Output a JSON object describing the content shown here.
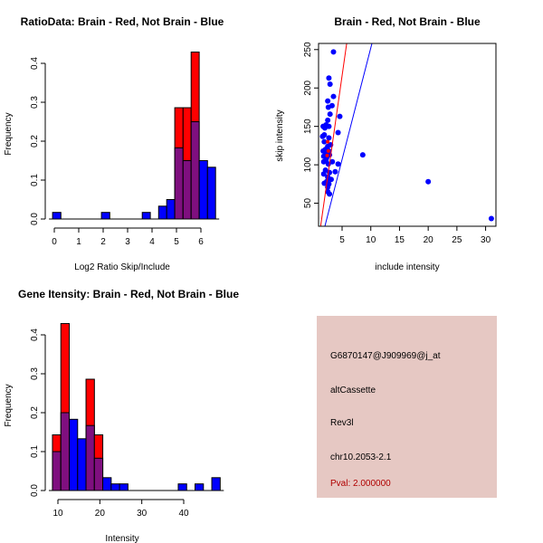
{
  "colors": {
    "red": "#ff0000",
    "blue": "#0000ff",
    "overlap": "#7f0f7f",
    "info_bg": "#e6c8c3",
    "pval": "#b00000"
  },
  "chart_data": [
    {
      "type": "bar",
      "title": "RatioData: Brain - Red, Not Brain - Blue",
      "xlabel": "Log2 Ratio Skip/Include",
      "ylabel": "Frequency",
      "xticks": [
        "0",
        "1",
        "2",
        "3",
        "4",
        "5",
        "6"
      ],
      "yticks": [
        "0.0",
        "0.1",
        "0.2",
        "0.3",
        "0.4"
      ],
      "xlim": [
        0,
        6.7
      ],
      "ylim": [
        0,
        0.43
      ],
      "bins": [
        {
          "from": -0.07,
          "to": 0.27,
          "red": 0,
          "blue": 0.017
        },
        {
          "from": 1.93,
          "to": 2.27,
          "red": 0,
          "blue": 0.017
        },
        {
          "from": 3.6,
          "to": 3.93,
          "red": 0,
          "blue": 0.017
        },
        {
          "from": 4.27,
          "to": 4.6,
          "red": 0,
          "blue": 0.033
        },
        {
          "from": 4.6,
          "to": 4.93,
          "red": 0,
          "blue": 0.05
        },
        {
          "from": 4.93,
          "to": 5.27,
          "red": 0.286,
          "blue": 0.183
        },
        {
          "from": 5.27,
          "to": 5.6,
          "red": 0.286,
          "blue": 0.15
        },
        {
          "from": 5.6,
          "to": 5.93,
          "red": 0.429,
          "blue": 0.25
        },
        {
          "from": 5.93,
          "to": 6.27,
          "red": 0,
          "blue": 0.15
        },
        {
          "from": 6.27,
          "to": 6.6,
          "red": 0,
          "blue": 0.133
        }
      ]
    },
    {
      "type": "scatter",
      "title": "Brain - Red, Not Brain - Blue",
      "xlabel": "include intensity",
      "ylabel": "skip intensity",
      "xticks": [
        5,
        10,
        15,
        20,
        25,
        30
      ],
      "yticks": [
        50,
        100,
        150,
        200,
        250
      ],
      "xlim": [
        0.9,
        31.8
      ],
      "ylim": [
        20,
        258
      ],
      "lines": [
        {
          "color": "red",
          "from": [
            1.26,
            20
          ],
          "to": [
            5.8,
            258
          ]
        },
        {
          "color": "blue",
          "from": [
            2.0,
            20
          ],
          "to": [
            10.2,
            258
          ]
        }
      ],
      "red_points": [
        [
          2.5,
          130
        ],
        [
          2.6,
          118
        ],
        [
          2.4,
          112
        ]
      ],
      "blue_points": [
        [
          3.5,
          247
        ],
        [
          2.7,
          213
        ],
        [
          2.9,
          205
        ],
        [
          3.5,
          189
        ],
        [
          2.5,
          183
        ],
        [
          3.25,
          177
        ],
        [
          2.6,
          175
        ],
        [
          2.9,
          166
        ],
        [
          4.6,
          163
        ],
        [
          2.5,
          158
        ],
        [
          2.2,
          152
        ],
        [
          2.7,
          150
        ],
        [
          2.0,
          148
        ],
        [
          1.7,
          150
        ],
        [
          1.6,
          137
        ],
        [
          4.3,
          142
        ],
        [
          1.9,
          139
        ],
        [
          2.7,
          135
        ],
        [
          1.9,
          130
        ],
        [
          3.0,
          126
        ],
        [
          2.5,
          124
        ],
        [
          2.1,
          120
        ],
        [
          1.7,
          118
        ],
        [
          2.7,
          118
        ],
        [
          2.2,
          115
        ],
        [
          2.8,
          113
        ],
        [
          1.8,
          111
        ],
        [
          2.3,
          109
        ],
        [
          8.6,
          113
        ],
        [
          3.3,
          104
        ],
        [
          4.3,
          101
        ],
        [
          2.2,
          106
        ],
        [
          1.8,
          104
        ],
        [
          2.6,
          101
        ],
        [
          2.1,
          93
        ],
        [
          3.8,
          91
        ],
        [
          2.8,
          90
        ],
        [
          1.8,
          88
        ],
        [
          2.5,
          84
        ],
        [
          3.1,
          81
        ],
        [
          2.3,
          78
        ],
        [
          1.9,
          76
        ],
        [
          2.7,
          75
        ],
        [
          2.5,
          71
        ],
        [
          2.8,
          62
        ],
        [
          2.5,
          65
        ],
        [
          20,
          78
        ],
        [
          31,
          30
        ]
      ]
    },
    {
      "type": "bar",
      "title": "Gene Itensity: Brain - Red, Not Brain - Blue",
      "xlabel": "Intensity",
      "ylabel": "Frequency",
      "xticks": [
        "10",
        "20",
        "30",
        "40"
      ],
      "yticks": [
        "0.0",
        "0.1",
        "0.2",
        "0.3",
        "0.4"
      ],
      "xlim": [
        9,
        49
      ],
      "ylim": [
        0,
        0.43
      ],
      "bins": [
        {
          "from": 8.7,
          "to": 10.7,
          "red": 0.143,
          "blue": 0.1
        },
        {
          "from": 10.7,
          "to": 12.7,
          "red": 0.429,
          "blue": 0.2
        },
        {
          "from": 12.7,
          "to": 14.7,
          "red": 0,
          "blue": 0.183
        },
        {
          "from": 14.7,
          "to": 16.7,
          "red": 0,
          "blue": 0.133
        },
        {
          "from": 16.7,
          "to": 18.7,
          "red": 0.286,
          "blue": 0.167
        },
        {
          "from": 18.7,
          "to": 20.7,
          "red": 0.143,
          "blue": 0.083
        },
        {
          "from": 20.7,
          "to": 22.7,
          "red": 0,
          "blue": 0.033
        },
        {
          "from": 22.7,
          "to": 24.7,
          "red": 0,
          "blue": 0.017
        },
        {
          "from": 24.7,
          "to": 26.7,
          "red": 0,
          "blue": 0.017
        },
        {
          "from": 38.7,
          "to": 40.7,
          "red": 0,
          "blue": 0.017
        },
        {
          "from": 42.7,
          "to": 44.7,
          "red": 0,
          "blue": 0.017
        },
        {
          "from": 46.7,
          "to": 48.7,
          "red": 0,
          "blue": 0.033
        }
      ]
    }
  ],
  "info": {
    "probe": "G6870147@J909969@j_at",
    "event_type": "altCassette",
    "gene": "Rev3l",
    "location": "chr10.2053-2.1",
    "pval": "Pval: 2.000000"
  }
}
